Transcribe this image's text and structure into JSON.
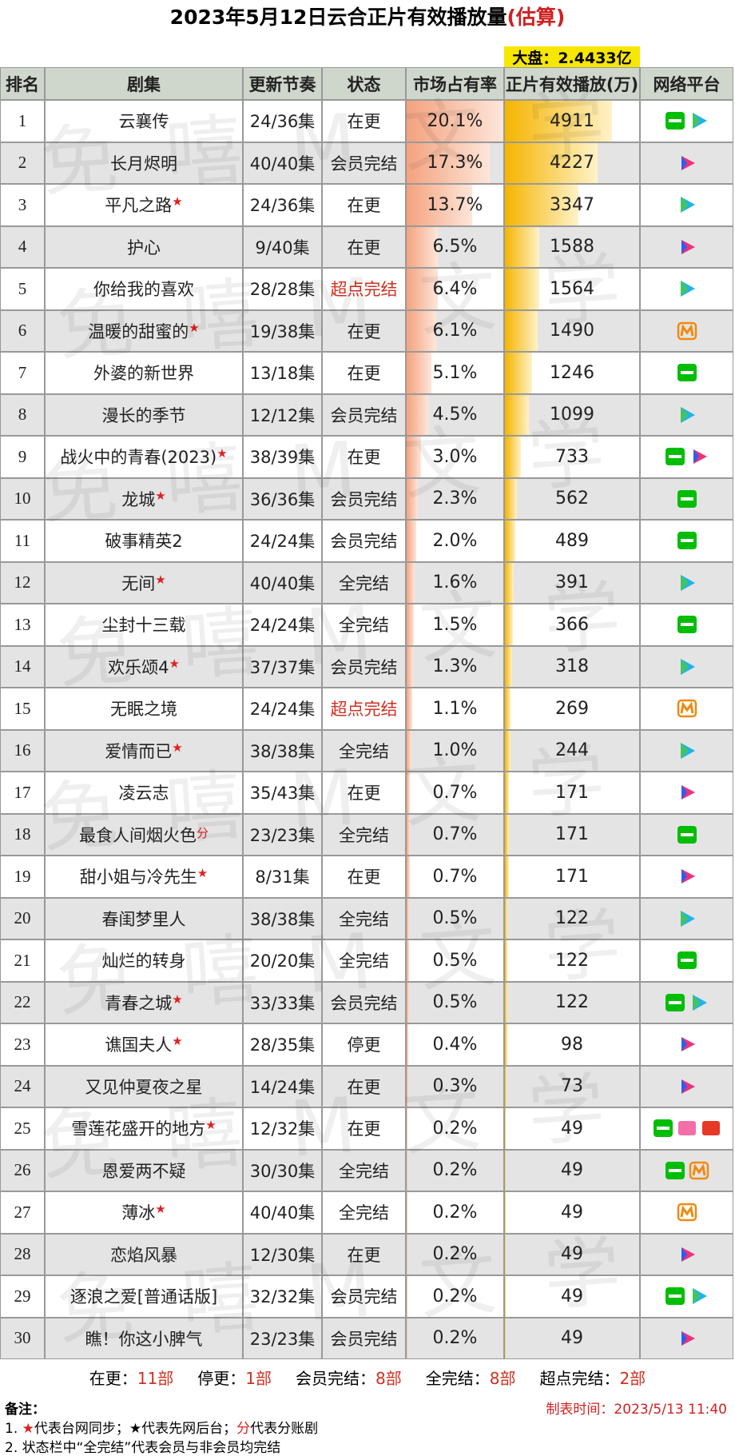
{
  "title": "2023年5月12日云合正片有效播放量",
  "title_suffix": "(估算)",
  "total": "大盘：2.4433亿",
  "watermark": "免嘻M文学",
  "table": {
    "headers": [
      "排名",
      "剧集",
      "更新节奏",
      "状态",
      "市场占有率",
      "正片有效播放(万)",
      "网络平台"
    ],
    "share_color": "#f4a27e",
    "plays_color": "#f5b400",
    "highlight_color": "#d03020",
    "rows": [
      {
        "rank": 1,
        "title": "云襄传",
        "episodes": "24/36集",
        "status": "在更",
        "share": {
          "value": 20.1,
          "label": "20.1%"
        },
        "plays": 4911
      },
      {
        "rank": 2,
        "title": "长月烬明",
        "episodes": "40/40集",
        "status": "会员完结",
        "share": {
          "value": 17.3,
          "label": "17.3%"
        },
        "plays": 4227
      },
      {
        "rank": 3,
        "title": "平凡之路",
        "mark": "★",
        "episodes": "24/36集",
        "status": "在更",
        "share": {
          "value": 13.7,
          "label": "13.7%"
        },
        "plays": 3347
      },
      {
        "rank": 4,
        "title": "护心",
        "episodes": "9/40集",
        "status": "在更",
        "share": {
          "value": 6.5,
          "label": "6.5%"
        },
        "plays": 1588
      },
      {
        "rank": 5,
        "title": "你给我的喜欢",
        "episodes": "28/28集",
        "status": "超点完结",
        "highlight": true,
        "share": {
          "value": 6.4,
          "label": "6.4%"
        },
        "plays": 1564
      },
      {
        "rank": 6,
        "title": "温暖的甜蜜的",
        "mark": "★",
        "episodes": "19/38集",
        "status": "在更",
        "share": {
          "value": 6.1,
          "label": "6.1%"
        },
        "plays": 1490
      },
      {
        "rank": 7,
        "title": "外婆的新世界",
        "episodes": "13/18集",
        "status": "在更",
        "share": {
          "value": 5.1,
          "label": "5.1%"
        },
        "plays": 1246
      },
      {
        "rank": 8,
        "title": "漫长的季节",
        "episodes": "12/12集",
        "status": "会员完结",
        "share": {
          "value": 4.5,
          "label": "4.5%"
        },
        "plays": 1099
      },
      {
        "rank": 9,
        "title": "战火中的青春(2023)",
        "mark": "★",
        "episodes": "38/39集",
        "status": "在更",
        "share": {
          "value": 3.0,
          "label": "3.0%"
        },
        "plays": 733
      },
      {
        "rank": 10,
        "title": "龙城",
        "mark": "★",
        "episodes": "36/36集",
        "status": "会员完结",
        "share": {
          "value": 2.3,
          "label": "2.3%"
        },
        "plays": 562
      },
      {
        "rank": 11,
        "title": "破事精英2",
        "episodes": "24/24集",
        "status": "会员完结",
        "share": {
          "value": 2.0,
          "label": "2.0%"
        },
        "plays": 489
      },
      {
        "rank": 12,
        "title": "无间",
        "mark": "★",
        "episodes": "40/40集",
        "status": "全完结",
        "share": {
          "value": 1.6,
          "label": "1.6%"
        },
        "plays": 391
      },
      {
        "rank": 13,
        "title": "尘封十三载",
        "episodes": "24/24集",
        "status": "全完结",
        "share": {
          "value": 1.5,
          "label": "1.5%"
        },
        "plays": 366
      },
      {
        "rank": 14,
        "title": "欢乐颂4",
        "mark": "★",
        "episodes": "37/37集",
        "status": "会员完结",
        "share": {
          "value": 1.3,
          "label": "1.3%"
        },
        "plays": 318
      },
      {
        "rank": 15,
        "title": "无眠之境",
        "episodes": "24/24集",
        "status": "超点完结",
        "highlight": true,
        "share": {
          "value": 1.1,
          "label": "1.1%"
        },
        "plays": 269
      },
      {
        "rank": 16,
        "title": "爱情而已",
        "mark": "★",
        "episodes": "38/38集",
        "status": "全完结",
        "share": {
          "value": 1.0,
          "label": "1.0%"
        },
        "plays": 244
      },
      {
        "rank": 17,
        "title": "凌云志",
        "episodes": "35/43集",
        "status": "在更",
        "share": {
          "value": 0.7,
          "label": "0.7%"
        },
        "plays": 171
      },
      {
        "rank": 18,
        "title": "最食人间烟火色",
        "mark": "分",
        "episodes": "23/23集",
        "status": "全完结",
        "share": {
          "value": 0.7,
          "label": "0.7%"
        },
        "plays": 171
      },
      {
        "rank": 19,
        "title": "甜小姐与冷先生",
        "mark": "★",
        "episodes": "8/31集",
        "status": "在更",
        "share": {
          "value": 0.7,
          "label": "0.7%"
        },
        "plays": 171
      },
      {
        "rank": 20,
        "title": "春闺梦里人",
        "episodes": "38/38集",
        "status": "全完结",
        "share": {
          "value": 0.5,
          "label": "0.5%"
        },
        "plays": 122
      },
      {
        "rank": 21,
        "title": "灿烂的转身",
        "episodes": "20/20集",
        "status": "全完结",
        "share": {
          "value": 0.5,
          "label": "0.5%"
        },
        "plays": 122
      },
      {
        "rank": 22,
        "title": "青春之城",
        "mark": "★",
        "episodes": "33/33集",
        "status": "会员完结",
        "share": {
          "value": 0.5,
          "label": "0.5%"
        },
        "plays": 122
      },
      {
        "rank": 23,
        "title": "谯国夫人",
        "mark": "★",
        "episodes": "28/35集",
        "status": "停更",
        "share": {
          "value": 0.4,
          "label": "0.4%"
        },
        "plays": 98
      },
      {
        "rank": 24,
        "title": "又见仲夏夜之星",
        "episodes": "14/24集",
        "status": "在更",
        "share": {
          "value": 0.3,
          "label": "0.3%"
        },
        "plays": 73
      },
      {
        "rank": 25,
        "title": "雪莲花盛开的地方",
        "mark": "★",
        "episodes": "12/32集",
        "status": "在更",
        "share": {
          "value": 0.2,
          "label": "0.2%"
        },
        "plays": 49
      },
      {
        "rank": 26,
        "title": "恩爱两不疑",
        "episodes": "30/30集",
        "status": "全完结",
        "share": {
          "value": 0.2,
          "label": "0.2%"
        },
        "plays": 49
      },
      {
        "rank": 27,
        "title": "薄冰",
        "mark": "★",
        "episodes": "40/40集",
        "status": "全完结",
        "share": {
          "value": 0.2,
          "label": "0.2%"
        },
        "plays": 49
      },
      {
        "rank": 28,
        "title": "恋焰风暴",
        "episodes": "12/30集",
        "status": "在更",
        "share": {
          "value": 0.2,
          "label": "0.2%"
        },
        "plays": 49
      },
      {
        "rank": 29,
        "title": "逐浪之爱[普通话版]",
        "episodes": "32/32集",
        "status": "会员完结",
        "share": {
          "value": 0.2,
          "label": "0.2%"
        },
        "plays": 49
      },
      {
        "rank": 30,
        "title": "瞧！你这小脾气",
        "episodes": "23/23集",
        "status": "会员完结",
        "share": {
          "value": 0.2,
          "label": "0.2%"
        },
        "plays": 49
      }
    ]
  },
  "summary": [
    {
      "label": "在更：",
      "count": "11部"
    },
    {
      "label": "停更：",
      "count": "1部"
    },
    {
      "label": "会员完结：",
      "count": "8部"
    },
    {
      "label": "全完结：",
      "count": "8部"
    },
    {
      "label": "超点完结：",
      "count": "2部"
    }
  ],
  "notes": {
    "heading": "备注：",
    "first_parts": [
      "1. ",
      "★",
      "代表台网同步；★代表先网后台；",
      "分",
      "代表分账剧"
    ],
    "lines": [
      null,
      "2. 状态栏中“全完结”代表会员与非会员均完结"
    ]
  },
  "timestamp": "制表时间：2023/5/13 11:40"
}
